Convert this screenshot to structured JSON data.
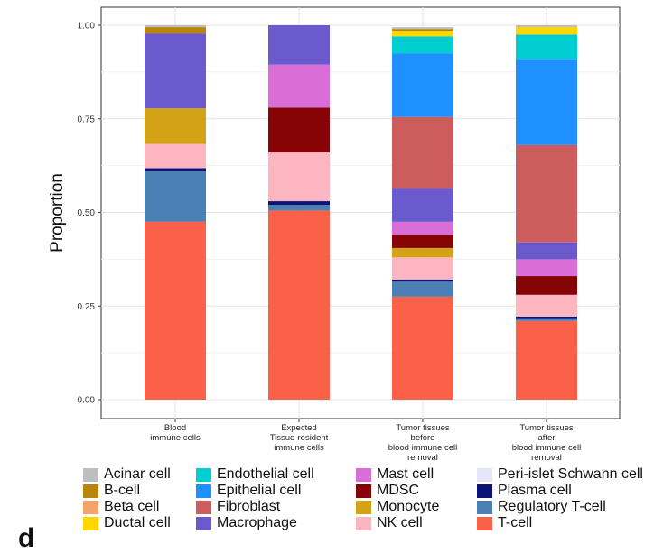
{
  "chart_data": {
    "type": "bar",
    "stacked": true,
    "title": "",
    "xlabel": "",
    "ylabel": "Proportion",
    "ylim": [
      0,
      1
    ],
    "yticks": [
      "0.00",
      "0.25",
      "0.50",
      "0.75",
      "1.00"
    ],
    "grid": true,
    "legend_position": "bottom",
    "categories": [
      [
        "Blood",
        "immune cells"
      ],
      [
        "Expected",
        "Tissue-resident",
        "immune cells"
      ],
      [
        "Tumor tissues",
        "before",
        "blood immune cell",
        "removal"
      ],
      [
        "Tumor tissues",
        "after",
        "blood immune cell",
        "removal"
      ]
    ],
    "series": [
      {
        "name": "T-cell",
        "color": "#FA6148",
        "values": [
          0.475,
          0.505,
          0.275,
          0.21
        ]
      },
      {
        "name": "Regulatory T-cell",
        "color": "#4B80B5",
        "values": [
          0.135,
          0.015,
          0.04,
          0.005
        ]
      },
      {
        "name": "Plasma cell",
        "color": "#0B1278",
        "values": [
          0.008,
          0.01,
          0.006,
          0.007
        ]
      },
      {
        "name": "Peri-islet Schwann cell",
        "color": "#E6E6FA",
        "values": [
          0.0,
          0.0,
          0.0,
          0.0
        ]
      },
      {
        "name": "NK cell",
        "color": "#FDB6C0",
        "values": [
          0.065,
          0.13,
          0.059,
          0.058
        ]
      },
      {
        "name": "Monocyte",
        "color": "#D4A216",
        "values": [
          0.095,
          0.0,
          0.025,
          0.0
        ]
      },
      {
        "name": "MDSC",
        "color": "#860405",
        "values": [
          0.0,
          0.12,
          0.035,
          0.05
        ]
      },
      {
        "name": "Mast cell",
        "color": "#D86ED6",
        "values": [
          0.0,
          0.115,
          0.035,
          0.045
        ]
      },
      {
        "name": "Macrophage",
        "color": "#6A5ACD",
        "values": [
          0.2,
          0.105,
          0.09,
          0.045
        ]
      },
      {
        "name": "Fibroblast",
        "color": "#CD5C5C",
        "values": [
          0.0,
          0.0,
          0.19,
          0.26
        ]
      },
      {
        "name": "Epithelial cell",
        "color": "#1E90FF",
        "values": [
          0.0,
          0.0,
          0.17,
          0.23
        ]
      },
      {
        "name": "Endothelial cell",
        "color": "#00CED1",
        "values": [
          0.0,
          0.0,
          0.045,
          0.065
        ]
      },
      {
        "name": "Ductal cell",
        "color": "#FFD700",
        "values": [
          0.0,
          0.0,
          0.015,
          0.02
        ]
      },
      {
        "name": "Beta cell",
        "color": "#F4A46A",
        "values": [
          0.0,
          0.0,
          0.0,
          0.0
        ]
      },
      {
        "name": "B-cell",
        "color": "#B8860B",
        "values": [
          0.017,
          0.0,
          0.005,
          0.0
        ]
      },
      {
        "name": "Acinar cell",
        "color": "#BEBEBE",
        "values": [
          0.005,
          0.0,
          0.005,
          0.005
        ]
      }
    ]
  },
  "legend": {
    "items": [
      {
        "label": "Acinar cell",
        "color": "#BEBEBE"
      },
      {
        "label": "B-cell",
        "color": "#B8860B"
      },
      {
        "label": "Beta cell",
        "color": "#F4A46A"
      },
      {
        "label": "Ductal cell",
        "color": "#FFD700"
      },
      {
        "label": "Endothelial cell",
        "color": "#00CED1"
      },
      {
        "label": "Epithelial cell",
        "color": "#1E90FF"
      },
      {
        "label": "Fibroblast",
        "color": "#CD5C5C"
      },
      {
        "label": "Macrophage",
        "color": "#6A5ACD"
      },
      {
        "label": "Mast cell",
        "color": "#D86ED6"
      },
      {
        "label": "MDSC",
        "color": "#860405"
      },
      {
        "label": "Monocyte",
        "color": "#D4A216"
      },
      {
        "label": "NK cell",
        "color": "#FDB6C0"
      },
      {
        "label": "Peri-islet Schwann cell",
        "color": "#E6E6FA"
      },
      {
        "label": "Plasma cell",
        "color": "#0B1278"
      },
      {
        "label": "Regulatory T-cell",
        "color": "#4B80B5"
      },
      {
        "label": "T-cell",
        "color": "#FA6148"
      }
    ]
  },
  "panel_label": "d"
}
